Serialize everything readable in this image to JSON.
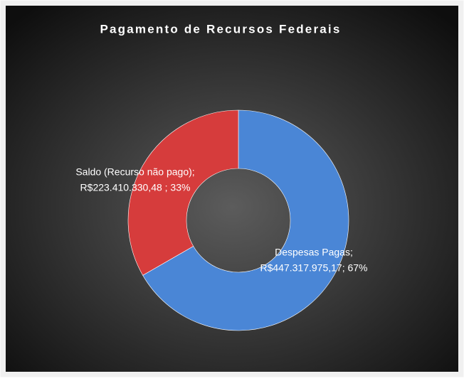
{
  "chart_data": {
    "type": "doughnut",
    "title": "Pagamento de Recursos Federais",
    "categories": [
      "Despesas Pagas;",
      "Saldo (Recurso não pago);"
    ],
    "values": [
      447317975.17,
      223410330.48
    ],
    "value_labels": [
      "R$447.317.975,17; 67%",
      "R$223.410.330,48 ; 33%"
    ],
    "colors": [
      "#4a86d6",
      "#d63c3c"
    ]
  }
}
